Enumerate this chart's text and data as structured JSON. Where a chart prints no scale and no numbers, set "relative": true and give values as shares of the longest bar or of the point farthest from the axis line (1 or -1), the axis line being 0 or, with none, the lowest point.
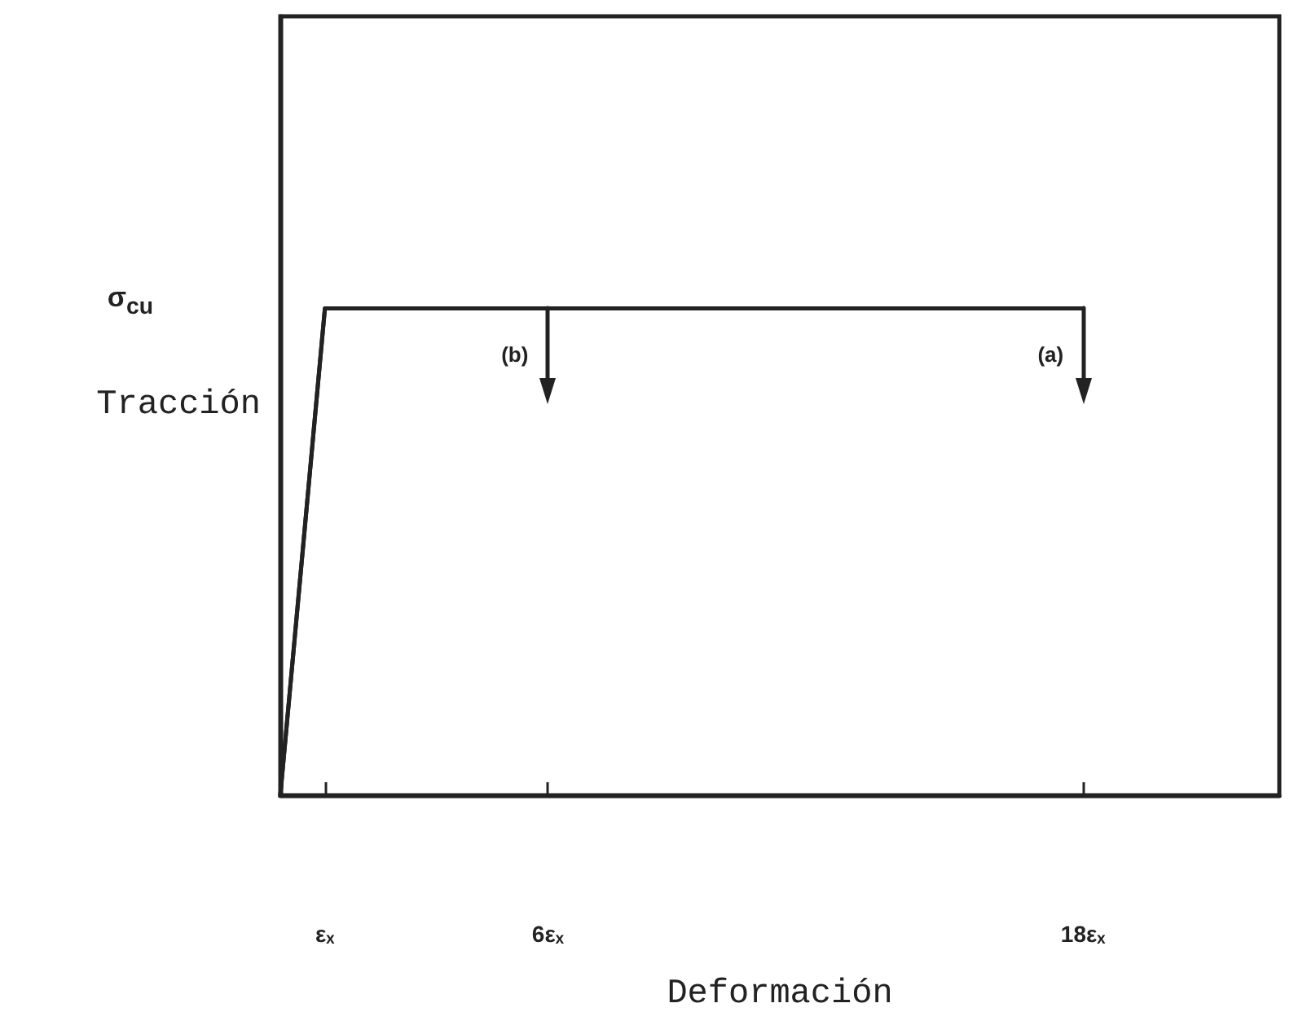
{
  "chart_data": {
    "type": "line",
    "relative": true,
    "xlabel": "Deformación",
    "ylabel": "Tracción",
    "xlim": [
      0,
      22.4
    ],
    "xticks": [
      {
        "value": 1,
        "label": "εₓ"
      },
      {
        "value": 6,
        "label": "6εₓ"
      },
      {
        "value": 18,
        "label": "18εₓ"
      }
    ],
    "annotations": [
      "σ$_{cu}$"
    ],
    "series": [
      {
        "name": "(b)",
        "color": "#222222",
        "x": [
          0,
          1,
          6
        ],
        "values": [
          0,
          1,
          1
        ]
      },
      {
        "name": "(a)",
        "color": "#222222",
        "x": [
          0,
          1,
          18
        ],
        "values": [
          0,
          1,
          1
        ]
      }
    ]
  }
}
